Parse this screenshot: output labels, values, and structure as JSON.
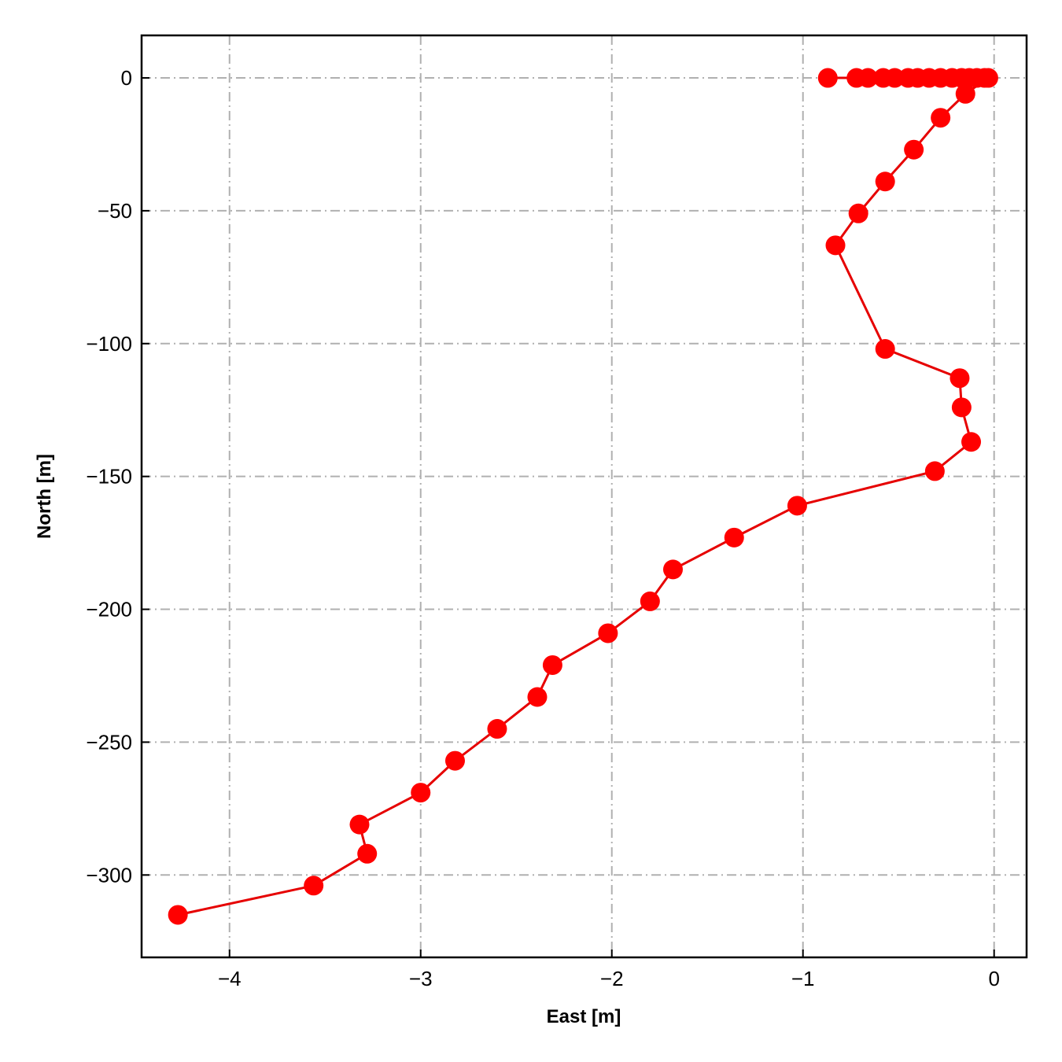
{
  "chart_data": {
    "type": "line",
    "xlabel": "East [m]",
    "ylabel": "North [m]",
    "xlim": [
      -4.46,
      0.17
    ],
    "ylim": [
      -331,
      16
    ],
    "xticks": [
      -4,
      -3,
      -2,
      -1,
      0
    ],
    "yticks": [
      0,
      -50,
      -100,
      -150,
      -200,
      -250,
      -300
    ],
    "xtick_labels": [
      "−4",
      "−3",
      "−2",
      "−1",
      "0"
    ],
    "ytick_labels": [
      "0",
      "−50",
      "−100",
      "−150",
      "−200",
      "−250",
      "−300"
    ],
    "grid": true,
    "marker": "circle",
    "color": "#ff0000",
    "series": [
      {
        "x": [
          -0.87,
          -0.72,
          -0.66,
          -0.58,
          -0.52,
          -0.45,
          -0.4,
          -0.34,
          -0.28,
          -0.22,
          -0.17,
          -0.13,
          -0.09,
          -0.05,
          -0.03,
          -0.15,
          -0.28,
          -0.42,
          -0.57,
          -0.71,
          -0.83,
          -0.57,
          -0.18,
          -0.17,
          -0.12,
          -0.31,
          -1.03,
          -1.36,
          -1.68,
          -1.8,
          -2.02,
          -2.31,
          -2.39,
          -2.6,
          -2.82,
          -3.0,
          -3.32,
          -3.28,
          -3.56,
          -4.27
        ],
        "y": [
          0,
          0,
          0,
          0,
          0,
          0,
          0,
          0,
          0,
          0,
          0,
          0,
          0,
          0,
          0,
          -6,
          -15,
          -27,
          -39,
          -51,
          -63,
          -102,
          -113,
          -124,
          -137,
          -148,
          -161,
          -173,
          -185,
          -197,
          -209,
          -221,
          -233,
          -245,
          -257,
          -269,
          -281,
          -292,
          -304,
          -315
        ]
      }
    ]
  }
}
